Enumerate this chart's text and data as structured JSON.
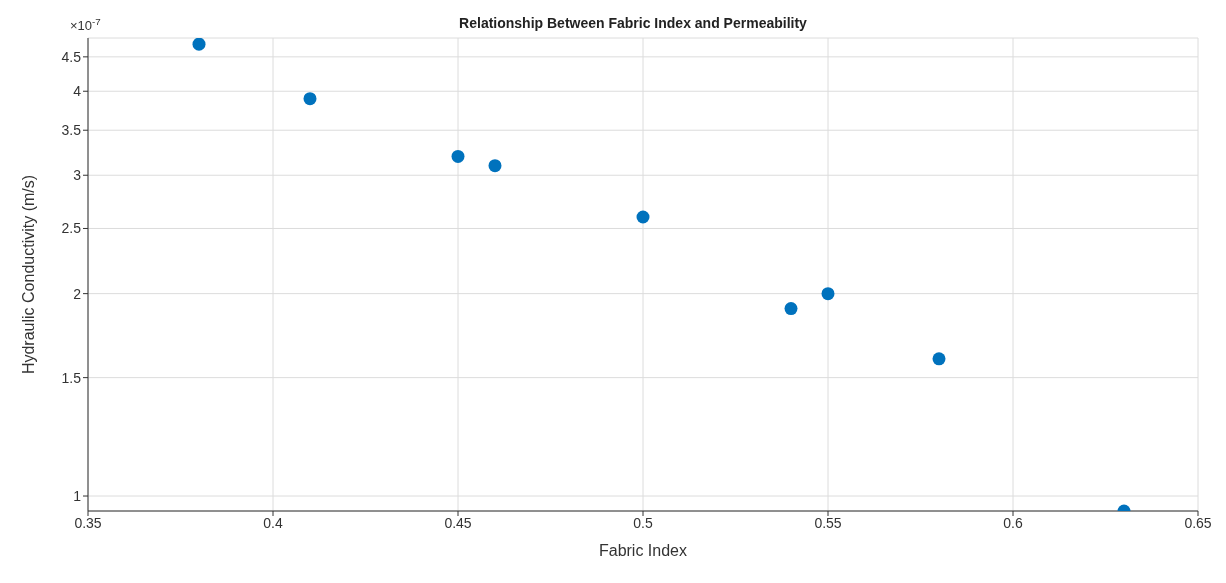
{
  "chart_data": {
    "type": "scatter",
    "title": "Relationship Between Fabric Index and Permeability",
    "xlabel": "Fabric Index",
    "ylabel": "Hydraulic Conductivity (m/s)",
    "annotations": [
      "×10$^{-7}$"
    ],
    "x": [
      0.38,
      0.41,
      0.45,
      0.46,
      0.5,
      0.54,
      0.55,
      0.58,
      0.63
    ],
    "series": [
      {
        "color": "#0072bd",
        "values": [
          4.7,
          3.9,
          3.2,
          3.1,
          2.6,
          1.9,
          2.0,
          1.6,
          0.95
        ]
      }
    ],
    "xlim": [
      0.35,
      0.65
    ],
    "xticks": [
      0.35,
      0.4,
      0.45,
      0.5,
      0.55,
      0.6,
      0.65
    ],
    "ylim": [
      0.95,
      4.8
    ],
    "yticks": [
      1,
      1.5,
      2,
      2.5,
      3,
      3.5,
      4,
      4.5
    ],
    "log": "y",
    "grid": true,
    "marker": "circle"
  }
}
